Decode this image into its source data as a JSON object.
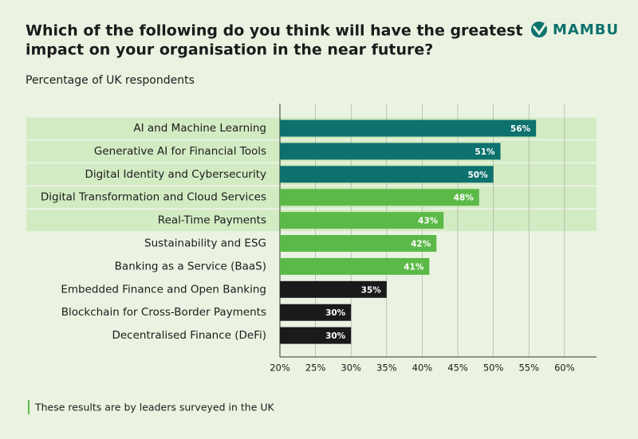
{
  "chart_data": {
    "type": "bar",
    "orientation": "horizontal",
    "title": [
      "Which of the following do you think will have the greatest",
      "impact on your organisation in the near future?"
    ],
    "subtitle": "Percentage of UK respondents",
    "logo": "MAMBU",
    "footnote": "These results are by leaders surveyed in the UK",
    "categories": [
      "AI and Machine Learning",
      "Generative AI for Financial Tools",
      "Digital Identity and Cybersecurity",
      "Digital Transformation and Cloud Services",
      "Real-Time Payments",
      "Sustainability and ESG",
      "Banking as a Service (BaaS)",
      "Embedded Finance and Open Banking",
      "Blockchain for Cross-Border Payments",
      "Decentralised Finance (DeFi)"
    ],
    "values": [
      56,
      51,
      50,
      48,
      43,
      42,
      41,
      35,
      30,
      30
    ],
    "value_labels": [
      "56%",
      "51%",
      "50%",
      "48%",
      "43%",
      "42%",
      "41%",
      "35%",
      "30%",
      "30%"
    ],
    "colors": [
      "#0d716d",
      "#0d716d",
      "#0d716d",
      "#5bb947",
      "#5bb947",
      "#5bb947",
      "#5bb947",
      "#1a1a1a",
      "#1a1a1a",
      "#1a1a1a"
    ],
    "highlighted": [
      true,
      true,
      true,
      true,
      true,
      false,
      false,
      false,
      false,
      false
    ],
    "highlight_color": "#d3ebc3",
    "xlim": [
      20,
      64.5
    ],
    "xticks": [
      {
        "value": 20,
        "label": "20%"
      },
      {
        "value": 25,
        "label": "25%"
      },
      {
        "value": 30,
        "label": "30%"
      },
      {
        "value": 35,
        "label": "35%"
      },
      {
        "value": 40,
        "label": "40%"
      },
      {
        "value": 45,
        "label": "45%"
      },
      {
        "value": 50,
        "label": "50%"
      },
      {
        "value": 55,
        "label": "55%"
      },
      {
        "value": 60,
        "label": "60%"
      }
    ],
    "grid": true
  }
}
